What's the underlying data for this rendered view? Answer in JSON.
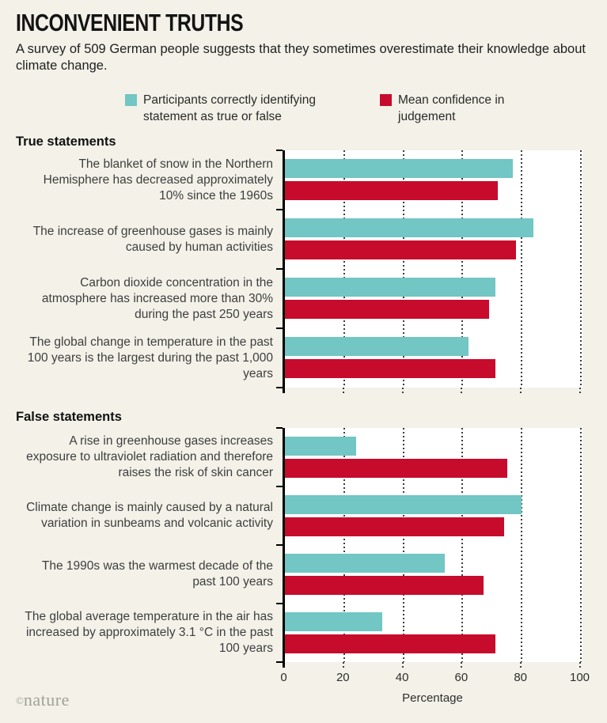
{
  "header": {
    "title": "INCONVENIENT TRUTHS",
    "subtitle": "A survey of 509 German people suggests that they sometimes overestimate their knowledge about climate change."
  },
  "legend": [
    {
      "label": "Participants correctly identifying statement as true or false",
      "color": "#72c6c4"
    },
    {
      "label": "Mean confidence in judgement",
      "color": "#c70b2d"
    }
  ],
  "colors": {
    "teal": "#72c6c4",
    "red": "#c70b2d",
    "background": "#f3f1e8",
    "plot_background": "#ffffff",
    "gridline": "#3d3d3d"
  },
  "axis": {
    "xlabel": "Percentage",
    "ticks": [
      0,
      20,
      40,
      60,
      80,
      100
    ]
  },
  "footer": {
    "copyright": "©",
    "logo": "nature"
  },
  "chart_data": {
    "type": "bar",
    "orientation": "horizontal",
    "title": "INCONVENIENT TRUTHS",
    "xlabel": "Percentage",
    "xlim": [
      0,
      100
    ],
    "x_ticks": [
      0,
      20,
      40,
      60,
      80,
      100
    ],
    "grid": "dotted-vertical",
    "legend_position": "top",
    "series_names": [
      "Participants correctly identifying statement as true or false",
      "Mean confidence in judgement"
    ],
    "sections": [
      {
        "title": "True statements",
        "statements": [
          {
            "label": "The blanket of snow in the Northern Hemisphere has decreased approximately 10% since the 1960s",
            "correct_pct": 77,
            "confidence_pct": 72
          },
          {
            "label": "The increase of greenhouse gases is mainly caused by human activities",
            "correct_pct": 84,
            "confidence_pct": 78
          },
          {
            "label": "Carbon dioxide concentration in the atmosphere has increased more than 30% during the past 250 years",
            "correct_pct": 71,
            "confidence_pct": 69
          },
          {
            "label": "The global change in temperature in the past 100 years is the largest during the past 1,000 years",
            "correct_pct": 62,
            "confidence_pct": 71
          }
        ]
      },
      {
        "title": "False statements",
        "statements": [
          {
            "label": "A rise in greenhouse gases increases exposure to ultraviolet radiation and therefore raises the risk of skin cancer",
            "correct_pct": 24,
            "confidence_pct": 75
          },
          {
            "label": "Climate change is mainly caused by a natural variation in sunbeams and volcanic activity",
            "correct_pct": 80,
            "confidence_pct": 74
          },
          {
            "label": "The 1990s was the warmest decade of the past 100 years",
            "correct_pct": 54,
            "confidence_pct": 67
          },
          {
            "label": "The global average temperature in the air has increased by approximately 3.1 °C in the past 100 years",
            "correct_pct": 33,
            "confidence_pct": 71
          }
        ]
      }
    ]
  }
}
